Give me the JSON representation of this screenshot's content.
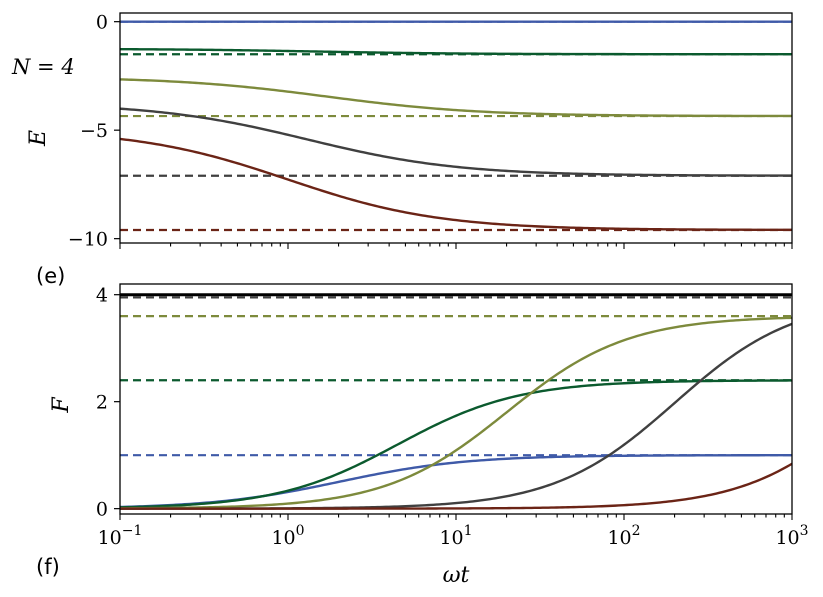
{
  "chart_data": [
    {
      "type": "line",
      "panel": "top",
      "annotation": "N = 4",
      "xscale": "log",
      "xlim": [
        0.1,
        1000
      ],
      "ylim": [
        -10.2,
        0.4
      ],
      "ylabel": "E",
      "yticks": [
        0,
        -5,
        -10
      ],
      "ytick_labels": [
        "0",
        "−5",
        "−10"
      ],
      "series": [
        {
          "color": "#3f5aa8",
          "style": "solid",
          "start": 0.0,
          "end": 0.0,
          "center": 1.0,
          "width": 0.4
        },
        {
          "color": "#3f5aa8",
          "style": "dashed",
          "value": 0.0
        },
        {
          "color": "#0b5a2e",
          "style": "solid",
          "start": -1.25,
          "end": -1.5,
          "center": 1.5,
          "width": 0.45
        },
        {
          "color": "#0b5a2e",
          "style": "dashed",
          "value": -1.5
        },
        {
          "color": "#7d8a3c",
          "style": "solid",
          "start": -2.55,
          "end": -4.35,
          "center": 1.7,
          "width": 0.45
        },
        {
          "color": "#7d8a3c",
          "style": "dashed",
          "value": -4.35
        },
        {
          "color": "#404040",
          "style": "solid",
          "start": -3.75,
          "end": -7.1,
          "center": 1.3,
          "width": 0.45
        },
        {
          "color": "#404040",
          "style": "dashed",
          "value": -7.1
        },
        {
          "color": "#6b2416",
          "style": "solid",
          "start": -4.95,
          "end": -9.6,
          "center": 1.0,
          "width": 0.45
        },
        {
          "color": "#6b2416",
          "style": "dashed",
          "value": -9.6
        }
      ],
      "reference_line": null
    },
    {
      "type": "line",
      "panel": "bottom",
      "xscale": "log",
      "xlim": [
        0.1,
        1000
      ],
      "ylim": [
        -0.1,
        4.2
      ],
      "xlabel": "ωt",
      "ylabel": "F",
      "xticks": [
        0.1,
        1,
        10,
        100,
        1000
      ],
      "xtick_base": "10",
      "xtick_exponents": [
        "−1",
        "0",
        "1",
        "2",
        "3"
      ],
      "yticks": [
        0,
        2,
        4
      ],
      "ytick_labels": [
        "0",
        "2",
        "4"
      ],
      "reference_line": {
        "color": "#000000",
        "value": 4.0
      },
      "series": [
        {
          "color": "#3f5aa8",
          "style": "solid",
          "start": 0.0,
          "end": 1.0,
          "center": 2.0,
          "width": 0.38
        },
        {
          "color": "#3f5aa8",
          "style": "dashed",
          "value": 1.0
        },
        {
          "color": "#0b5a2e",
          "style": "solid",
          "start": 0.0,
          "end": 2.4,
          "center": 4.5,
          "width": 0.36
        },
        {
          "color": "#0b5a2e",
          "style": "dashed",
          "value": 2.4
        },
        {
          "color": "#7d8a3c",
          "style": "solid",
          "start": 0.0,
          "end": 3.6,
          "center": 20,
          "width": 0.36
        },
        {
          "color": "#7d8a3c",
          "style": "dashed",
          "value": 3.6
        },
        {
          "color": "#404040",
          "style": "solid",
          "start": 0.0,
          "end": 3.95,
          "center": 200,
          "width": 0.36
        },
        {
          "color": "#404040",
          "style": "dashed",
          "value": 3.95
        },
        {
          "color": "#6b2416",
          "style": "solid",
          "start": 0.0,
          "end": 4.0,
          "center": 3000,
          "width": 0.36
        }
      ]
    }
  ],
  "panel_tags": {
    "top": "(e)",
    "bottom": "(f)"
  }
}
